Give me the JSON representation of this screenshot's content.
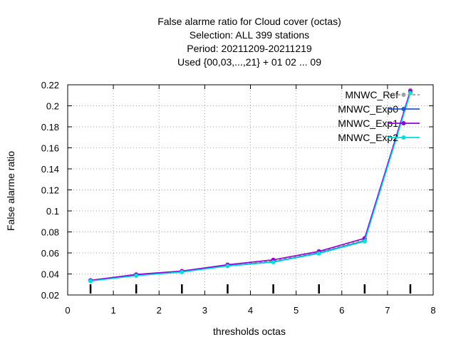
{
  "chart_data": {
    "type": "line",
    "title_lines": [
      "False alarme ratio  for Cloud cover (octas)",
      "Selection: ALL    399 stations",
      "Period: 20211209-20211219",
      "Used {00,03,...,21} + 01 02 ... 09"
    ],
    "xlabel": "thresholds octas",
    "ylabel": "False alarme ratio",
    "xlim": [
      0,
      8
    ],
    "ylim": [
      0.02,
      0.22
    ],
    "xticks": [
      "0",
      "1",
      "2",
      "3",
      "4",
      "5",
      "6",
      "7",
      "8"
    ],
    "yticks": [
      "0.02",
      "0.04",
      "0.06",
      "0.08",
      "0.1",
      "0.12",
      "0.14",
      "0.16",
      "0.18",
      "0.2",
      "0.22"
    ],
    "grid": true,
    "legend_position": "top-right",
    "x": [
      0.5,
      1.5,
      2.5,
      3.5,
      4.5,
      5.5,
      6.5,
      7.5
    ],
    "series": [
      {
        "name": "MNWC_Ref",
        "color": "#a0a0a0",
        "dashed": true,
        "values": [
          0.034,
          0.0392,
          0.0425,
          0.0485,
          0.0525,
          0.061,
          0.073,
          0.215
        ]
      },
      {
        "name": "MNWC_Exp0",
        "color": "#2255cc",
        "dashed": false,
        "values": [
          0.0335,
          0.0385,
          0.042,
          0.0478,
          0.0515,
          0.06,
          0.0715,
          0.213
        ]
      },
      {
        "name": "MNWC_Exp1",
        "color": "#9400d3",
        "dashed": false,
        "values": [
          0.034,
          0.0395,
          0.0428,
          0.0488,
          0.0535,
          0.0615,
          0.074,
          0.214
        ]
      },
      {
        "name": "MNWC_Exp2",
        "color": "#00dddd",
        "dashed": false,
        "values": [
          0.0332,
          0.0383,
          0.0418,
          0.0475,
          0.0512,
          0.0595,
          0.071,
          0.212
        ]
      }
    ]
  }
}
